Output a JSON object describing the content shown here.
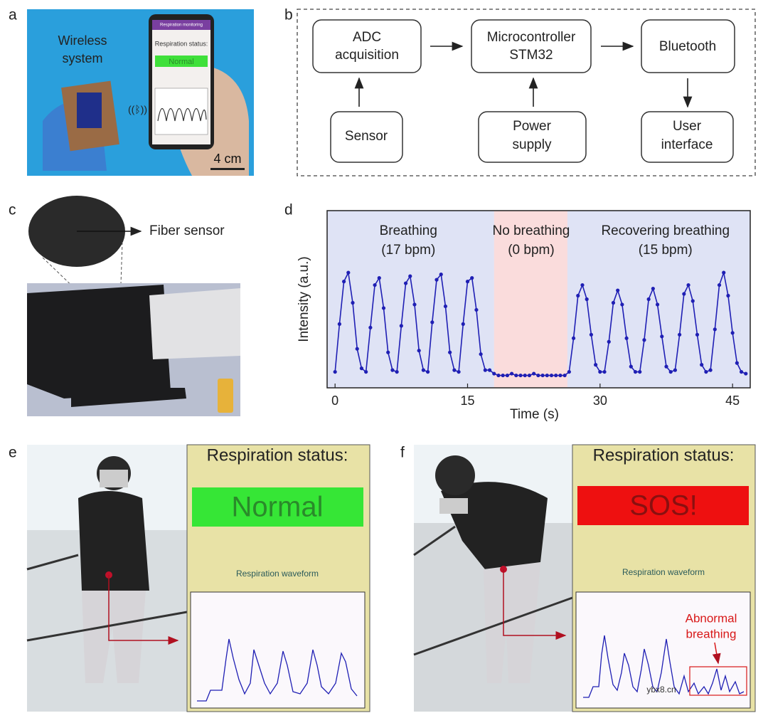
{
  "panels": {
    "a": {
      "label": "a",
      "caption": [
        "Wireless",
        "system"
      ],
      "scale_bar": "4 cm",
      "phone": {
        "header": "Respiration monitoring",
        "status_label": "Respiration status:",
        "status": "Normal"
      }
    },
    "b": {
      "label": "b",
      "nodes": [
        {
          "label": [
            "ADC",
            "acquisition"
          ]
        },
        {
          "label": [
            "Microcontroller",
            "STM32"
          ]
        },
        {
          "label": [
            "Bluetooth"
          ]
        },
        {
          "label": [
            "Sensor"
          ]
        },
        {
          "label": [
            "Power",
            "supply"
          ]
        },
        {
          "label": [
            "User",
            "interface"
          ]
        }
      ]
    },
    "c": {
      "label": "c",
      "callout": "Fiber sensor"
    },
    "d": {
      "label": "d"
    },
    "e": {
      "label": "e",
      "status_label": "Respiration status:",
      "status": "Normal",
      "waveform_label": "Respiration waveform"
    },
    "f": {
      "label": "f",
      "status_label": "Respiration status:",
      "status": "SOS!",
      "waveform_label": "Respiration waveform",
      "annotation": [
        "Abnormal",
        "breathing"
      ]
    }
  },
  "watermark": "ybx8.cn",
  "chart_data": {
    "type": "line",
    "x_label": "Time (s)",
    "y_label": "Intensity (a.u.)",
    "color": "#1f1fb4",
    "background": "#dfe3f5",
    "shaded_regions": [
      {
        "xlim": [
          18,
          26.3
        ],
        "color": "#fadcdc"
      }
    ],
    "annotations": [
      {
        "text": [
          "Breathing",
          "(17 bpm)"
        ],
        "x": 8.3
      },
      {
        "text": [
          "No breathing",
          "(0 bpm)"
        ],
        "x": 22.2
      },
      {
        "text": [
          "Recovering breathing",
          "(15 bpm)"
        ],
        "x": 37.4
      }
    ],
    "xlim": [
      -0.9,
      47
    ],
    "xticks": [
      0,
      15,
      30,
      45
    ],
    "ylim": [
      0,
      1
    ],
    "x": [
      0,
      0.5,
      1,
      1.5,
      2,
      2.5,
      3,
      3.5,
      4,
      4.5,
      5,
      5.5,
      6,
      6.5,
      7,
      7.5,
      8,
      8.5,
      9,
      9.5,
      10,
      10.5,
      11,
      11.5,
      12,
      12.5,
      13,
      13.5,
      14,
      14.5,
      15,
      15.5,
      16,
      16.5,
      17,
      17.5,
      18,
      18.5,
      19,
      19.5,
      20,
      20.5,
      21,
      21.5,
      22,
      22.5,
      23,
      23.5,
      24,
      24.5,
      25,
      25.5,
      26,
      26.5,
      27,
      27.5,
      28,
      28.5,
      29,
      29.5,
      30,
      30.5,
      31,
      31.5,
      32,
      32.5,
      33,
      33.5,
      34,
      34.5,
      35,
      35.5,
      36,
      36.5,
      37,
      37.5,
      38,
      38.5,
      39,
      39.5,
      40,
      40.5,
      41,
      41.5,
      42,
      42.5,
      43,
      43.5,
      44,
      44.5,
      45,
      45.5,
      46,
      46.5
    ],
    "values": [
      0.09,
      0.36,
      0.6,
      0.65,
      0.48,
      0.22,
      0.11,
      0.09,
      0.34,
      0.58,
      0.62,
      0.45,
      0.2,
      0.1,
      0.09,
      0.35,
      0.59,
      0.63,
      0.47,
      0.21,
      0.1,
      0.09,
      0.37,
      0.61,
      0.64,
      0.46,
      0.2,
      0.1,
      0.09,
      0.36,
      0.6,
      0.62,
      0.44,
      0.19,
      0.1,
      0.1,
      0.08,
      0.07,
      0.07,
      0.07,
      0.08,
      0.07,
      0.07,
      0.07,
      0.07,
      0.08,
      0.07,
      0.07,
      0.07,
      0.07,
      0.07,
      0.07,
      0.07,
      0.09,
      0.28,
      0.52,
      0.58,
      0.5,
      0.3,
      0.13,
      0.09,
      0.09,
      0.26,
      0.48,
      0.55,
      0.47,
      0.28,
      0.12,
      0.09,
      0.09,
      0.27,
      0.5,
      0.56,
      0.47,
      0.29,
      0.12,
      0.09,
      0.1,
      0.3,
      0.53,
      0.58,
      0.49,
      0.3,
      0.13,
      0.09,
      0.1,
      0.33,
      0.58,
      0.65,
      0.52,
      0.31,
      0.14,
      0.09,
      0.08
    ]
  }
}
